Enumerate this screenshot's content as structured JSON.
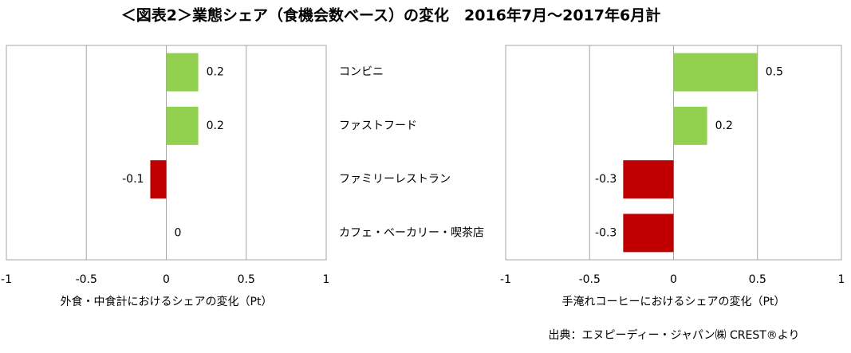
{
  "chart_data": {
    "title": "＜図表2＞業態シェア（食機会数ベース）の変化　2016年7月～2017年6月計",
    "categories": [
      "コンビニ",
      "ファストフード",
      "ファミリーレストラン",
      "カフェ・ベーカリー・喫茶店"
    ],
    "source": "出典：エヌピーディー・ジャパン㈱ CREST®より",
    "positive_color": "#92d050",
    "negative_color": "#c00000",
    "charts": [
      {
        "type": "bar",
        "orientation": "horizontal",
        "xlabel": "外食・中食計におけるシェアの変化（Pt）",
        "values": [
          0.2,
          0.2,
          -0.1,
          0
        ],
        "xlim": [
          -1,
          1
        ],
        "xticks": [
          -1,
          -0.5,
          0,
          0.5,
          1
        ],
        "grid": true
      },
      {
        "type": "bar",
        "orientation": "horizontal",
        "xlabel": "手淹れコーヒーにおけるシェアの変化（Pt）",
        "values": [
          0.5,
          0.2,
          -0.3,
          -0.3
        ],
        "xlim": [
          -1,
          1
        ],
        "xticks": [
          -1,
          -0.5,
          0,
          0.5,
          1
        ],
        "grid": true
      }
    ]
  }
}
